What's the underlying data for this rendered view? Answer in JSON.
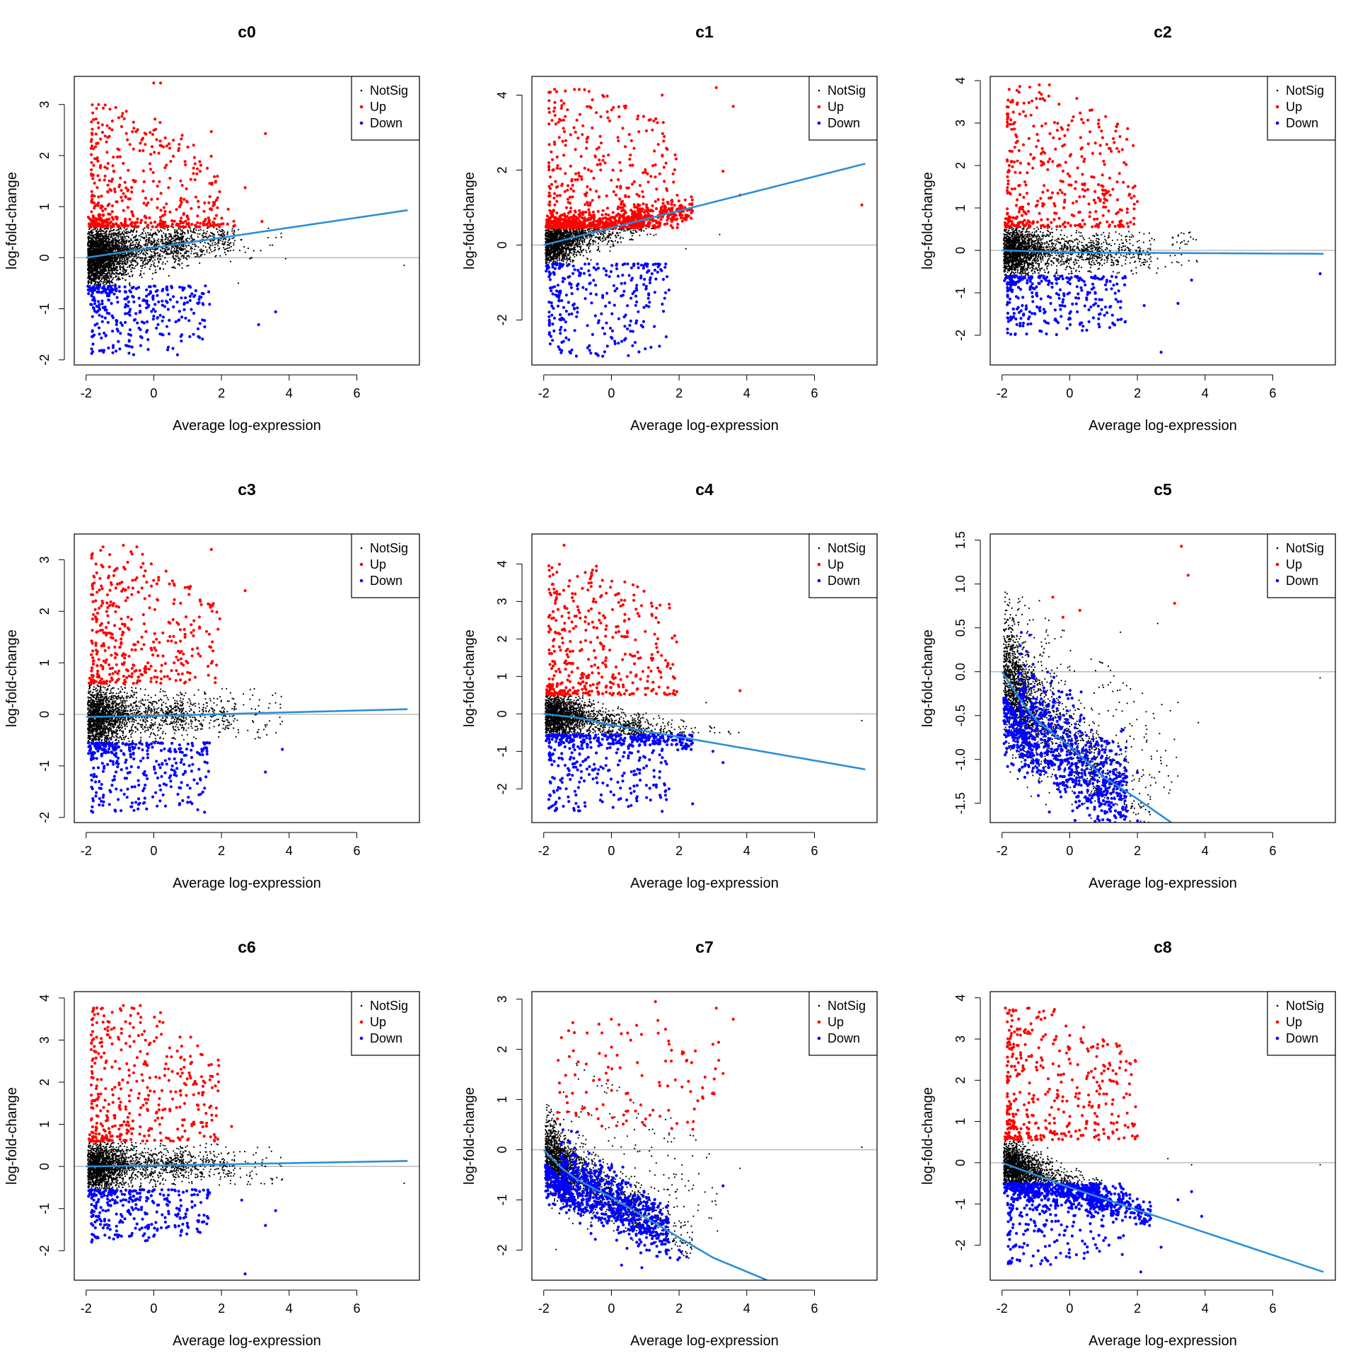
{
  "figure": {
    "background": "#ffffff"
  },
  "legend": {
    "position": "top-right",
    "entries": [
      "NotSig",
      "Up",
      "Down"
    ],
    "colors": [
      "#000000",
      "#ff0000",
      "#0000ff"
    ]
  },
  "trend_color": "#2a8fd8",
  "zero_line_color": "#bebebe",
  "chart_data": [
    {
      "type": "scatter",
      "title": "c0",
      "xlabel": "Average log-expression",
      "ylabel": "log-fold-change",
      "xlim": [
        -2.35,
        7.85
      ],
      "ylim": [
        -2.1,
        3.55
      ],
      "xticks": [
        -2,
        0,
        2,
        4,
        6
      ],
      "yticks": [
        -2,
        -1,
        0,
        1,
        2,
        3
      ],
      "trend": [
        [
          -2,
          0
        ],
        [
          7.5,
          0.93
        ]
      ],
      "up_threshold": 0.6,
      "down_threshold": -0.55,
      "up_peak": 3.0,
      "down_peak": -1.9,
      "outliers_up": [
        [
          0.0,
          3.42
        ],
        [
          0.2,
          3.42
        ],
        [
          1.7,
          2.47
        ],
        [
          3.3,
          2.43
        ],
        [
          2.7,
          1.37
        ],
        [
          3.2,
          0.71
        ],
        [
          2.2,
          0.95
        ]
      ],
      "outliers_down": [
        [
          0.7,
          -1.9
        ],
        [
          3.1,
          -1.31
        ],
        [
          3.6,
          -1.06
        ],
        [
          -1.2,
          -1.76
        ]
      ],
      "outliers_notsig": [
        [
          7.4,
          -0.15
        ],
        [
          2.5,
          -0.5
        ],
        [
          3.9,
          -0.02
        ]
      ]
    },
    {
      "type": "scatter",
      "title": "c1",
      "xlabel": "Average log-expression",
      "ylabel": "log-fold-change",
      "xlim": [
        -2.35,
        7.85
      ],
      "ylim": [
        -3.2,
        4.5
      ],
      "xticks": [
        -2,
        0,
        2,
        4,
        6
      ],
      "yticks": [
        -2,
        0,
        2,
        4
      ],
      "trend": [
        [
          -2,
          0
        ],
        [
          7.5,
          2.17
        ]
      ],
      "up_threshold": 0.45,
      "down_threshold": -0.5,
      "up_peak": 4.2,
      "down_peak": -3.0,
      "outliers_up": [
        [
          3.1,
          4.2
        ],
        [
          3.6,
          3.7
        ],
        [
          7.4,
          1.07
        ],
        [
          3.3,
          1.97
        ],
        [
          1.5,
          4.0
        ],
        [
          3.8,
          1.33
        ]
      ],
      "outliers_down": [
        [
          0.5,
          -2.95
        ],
        [
          1.0,
          -2.77
        ],
        [
          0.7,
          -2.6
        ],
        [
          1.7,
          -1.2
        ],
        [
          1.1,
          -1.3
        ]
      ],
      "outliers_notsig": [
        [
          3.2,
          0.28
        ],
        [
          2.3,
          0.95
        ],
        [
          2.2,
          -0.1
        ]
      ]
    },
    {
      "type": "scatter",
      "title": "c2",
      "xlabel": "Average log-expression",
      "ylabel": "log-fold-change",
      "xlim": [
        -2.35,
        7.85
      ],
      "ylim": [
        -2.7,
        4.1
      ],
      "xticks": [
        -2,
        0,
        2,
        4,
        6
      ],
      "yticks": [
        -2,
        -1,
        0,
        1,
        2,
        3,
        4
      ],
      "trend": [
        [
          -2,
          0
        ],
        [
          0,
          -0.05
        ],
        [
          7.5,
          -0.08
        ]
      ],
      "up_threshold": 0.55,
      "down_threshold": -0.6,
      "up_peak": 3.9,
      "down_peak": -2.0,
      "outliers_up": [
        [
          -0.9,
          3.9
        ],
        [
          -0.6,
          3.9
        ],
        [
          0.6,
          3.3
        ],
        [
          1.0,
          2.1
        ],
        [
          2.0,
          1.15
        ]
      ],
      "outliers_down": [
        [
          7.4,
          -0.55
        ],
        [
          2.7,
          -2.4
        ],
        [
          3.6,
          -0.7
        ],
        [
          3.2,
          -1.25
        ],
        [
          2.2,
          -1.3
        ]
      ],
      "outliers_notsig": [
        [
          3.3,
          -0.1
        ],
        [
          2.5,
          0.25
        ]
      ]
    },
    {
      "type": "scatter",
      "title": "c3",
      "xlabel": "Average log-expression",
      "ylabel": "log-fold-change",
      "xlim": [
        -2.35,
        7.85
      ],
      "ylim": [
        -2.1,
        3.5
      ],
      "xticks": [
        -2,
        0,
        2,
        4,
        6
      ],
      "yticks": [
        -2,
        -1,
        0,
        1,
        2,
        3
      ],
      "trend": [
        [
          -2,
          -0.05
        ],
        [
          0,
          -0.03
        ],
        [
          7.5,
          0.1
        ]
      ],
      "up_threshold": 0.6,
      "down_threshold": -0.55,
      "up_peak": 3.2,
      "down_peak": -1.9,
      "outliers_up": [
        [
          -1.5,
          3.25
        ],
        [
          -0.9,
          3.28
        ],
        [
          -0.5,
          3.25
        ],
        [
          1.7,
          3.2
        ],
        [
          2.7,
          2.4
        ],
        [
          -1.3,
          3.1
        ]
      ],
      "outliers_down": [
        [
          3.8,
          -0.68
        ],
        [
          3.3,
          -1.12
        ],
        [
          1.5,
          -1.9
        ],
        [
          1.3,
          -1.85
        ],
        [
          0.1,
          -1.78
        ]
      ],
      "outliers_notsig": [
        [
          3.0,
          0.1
        ],
        [
          2.5,
          -0.3
        ]
      ]
    },
    {
      "type": "scatter",
      "title": "c4",
      "xlabel": "Average log-expression",
      "ylabel": "log-fold-change",
      "xlim": [
        -2.35,
        7.85
      ],
      "ylim": [
        -2.9,
        4.8
      ],
      "xticks": [
        -2,
        0,
        2,
        4,
        6
      ],
      "yticks": [
        -2,
        -1,
        0,
        1,
        2,
        3,
        4
      ],
      "trend": [
        [
          -2,
          0
        ],
        [
          -1,
          -0.1
        ],
        [
          0,
          -0.3
        ],
        [
          7.5,
          -1.48
        ]
      ],
      "up_threshold": 0.5,
      "down_threshold": -0.55,
      "up_peak": 4.0,
      "down_peak": -2.6,
      "outliers_up": [
        [
          -1.4,
          4.5
        ],
        [
          3.8,
          0.62
        ],
        [
          -0.6,
          3.4
        ],
        [
          1.0,
          2.2
        ]
      ],
      "outliers_down": [
        [
          2.4,
          -2.4
        ],
        [
          1.7,
          -2.0
        ],
        [
          1.5,
          -2.6
        ],
        [
          3.3,
          -1.3
        ],
        [
          3.0,
          -1.0
        ]
      ],
      "outliers_notsig": [
        [
          2.8,
          0.3
        ],
        [
          3.2,
          -0.5
        ],
        [
          7.4,
          -0.18
        ]
      ]
    },
    {
      "type": "scatter",
      "title": "c5",
      "xlabel": "Average log-expression",
      "ylabel": "log-fold-change",
      "xlim": [
        -2.35,
        7.85
      ],
      "ylim": [
        -1.72,
        1.57
      ],
      "xticks": [
        -2,
        0,
        2,
        4,
        6
      ],
      "yticks": [
        -1.5,
        -1.0,
        -0.5,
        0.0,
        0.5,
        1.0,
        1.5
      ],
      "trend": [
        [
          -2,
          0.0
        ],
        [
          -1.5,
          -0.3
        ],
        [
          -1,
          -0.55
        ],
        [
          0,
          -0.85
        ],
        [
          1,
          -1.2
        ],
        [
          2,
          -1.45
        ],
        [
          3,
          -1.72
        ]
      ],
      "outliers_up": [
        [
          3.3,
          1.43
        ],
        [
          3.5,
          1.1
        ],
        [
          3.1,
          0.78
        ],
        [
          -0.5,
          0.85
        ],
        [
          0.3,
          0.7
        ],
        [
          -0.2,
          0.62
        ]
      ],
      "outliers_down": [
        [
          1.1,
          -1.6
        ],
        [
          0.5,
          -1.45
        ],
        [
          2.0,
          -1.15
        ],
        [
          1.6,
          -1.25
        ]
      ],
      "outliers_notsig": [
        [
          7.4,
          -0.07
        ],
        [
          3.8,
          -0.58
        ],
        [
          3.2,
          -0.35
        ],
        [
          2.6,
          0.55
        ],
        [
          1.5,
          0.45
        ]
      ]
    },
    {
      "type": "scatter",
      "title": "c6",
      "xlabel": "Average log-expression",
      "ylabel": "log-fold-change",
      "xlim": [
        -2.35,
        7.85
      ],
      "ylim": [
        -2.7,
        4.15
      ],
      "xticks": [
        -2,
        0,
        2,
        4,
        6
      ],
      "yticks": [
        -2,
        -1,
        0,
        1,
        2,
        3,
        4
      ],
      "trend": [
        [
          -2,
          0
        ],
        [
          0,
          0.02
        ],
        [
          7.5,
          0.13
        ]
      ],
      "up_threshold": 0.6,
      "down_threshold": -0.55,
      "up_peak": 3.8,
      "down_peak": -1.8,
      "outliers_up": [
        [
          -0.9,
          3.82
        ],
        [
          -0.4,
          3.82
        ],
        [
          0.2,
          3.65
        ],
        [
          1.7,
          2.42
        ],
        [
          2.3,
          0.95
        ]
      ],
      "outliers_down": [
        [
          2.7,
          -2.55
        ],
        [
          3.6,
          -1.05
        ],
        [
          3.3,
          -1.4
        ],
        [
          2.6,
          -0.8
        ]
      ],
      "outliers_notsig": [
        [
          7.4,
          -0.4
        ],
        [
          3.8,
          -0.3
        ],
        [
          3.2,
          0.1
        ]
      ]
    },
    {
      "type": "scatter",
      "title": "c7",
      "xlabel": "Average log-expression",
      "ylabel": "log-fold-change",
      "xlim": [
        -2.35,
        7.85
      ],
      "ylim": [
        -2.6,
        3.15
      ],
      "xticks": [
        -2,
        0,
        2,
        4,
        6
      ],
      "yticks": [
        -2,
        -1,
        0,
        1,
        2,
        3
      ],
      "trend": [
        [
          -2,
          0
        ],
        [
          -1.5,
          -0.35
        ],
        [
          -1,
          -0.6
        ],
        [
          0,
          -0.95
        ],
        [
          1,
          -1.35
        ],
        [
          2,
          -1.75
        ],
        [
          3,
          -2.15
        ],
        [
          4.6,
          -2.6
        ]
      ],
      "outliers_up": [
        [
          1.3,
          2.95
        ],
        [
          3.1,
          2.82
        ],
        [
          3.6,
          2.6
        ],
        [
          1.6,
          2.4
        ],
        [
          3.3,
          1.52
        ],
        [
          0.0,
          2.6
        ],
        [
          2.1,
          1.95
        ],
        [
          3.0,
          2.1
        ]
      ],
      "outliers_down": [
        [
          3.3,
          -0.72
        ],
        [
          0.9,
          -2.35
        ],
        [
          0.3,
          -2.3
        ]
      ],
      "outliers_notsig": [
        [
          7.4,
          0.05
        ],
        [
          3.8,
          -0.37
        ],
        [
          2.4,
          0.4
        ],
        [
          1.6,
          0.6
        ]
      ]
    },
    {
      "type": "scatter",
      "title": "c8",
      "xlabel": "Average log-expression",
      "ylabel": "log-fold-change",
      "xlim": [
        -2.35,
        7.85
      ],
      "ylim": [
        -2.85,
        4.15
      ],
      "xticks": [
        -2,
        0,
        2,
        4,
        6
      ],
      "yticks": [
        -2,
        -1,
        0,
        1,
        2,
        3,
        4
      ],
      "trend": [
        [
          -2,
          0
        ],
        [
          0,
          -0.6
        ],
        [
          7.5,
          -2.65
        ]
      ],
      "up_threshold": 0.55,
      "down_threshold": -0.5,
      "up_peak": 3.75,
      "down_peak": -2.5,
      "outliers_up": [
        [
          -1.9,
          3.75
        ],
        [
          -1.2,
          3.75
        ],
        [
          1.3,
          0.95
        ],
        [
          2.0,
          0.65
        ],
        [
          -1.7,
          3.45
        ]
      ],
      "outliers_down": [
        [
          2.1,
          -2.65
        ],
        [
          2.7,
          -2.05
        ],
        [
          3.9,
          -1.3
        ],
        [
          3.6,
          -0.7
        ],
        [
          3.2,
          -0.9
        ]
      ],
      "outliers_notsig": [
        [
          7.4,
          -0.05
        ],
        [
          3.6,
          -0.05
        ],
        [
          2.9,
          0.1
        ]
      ]
    }
  ]
}
